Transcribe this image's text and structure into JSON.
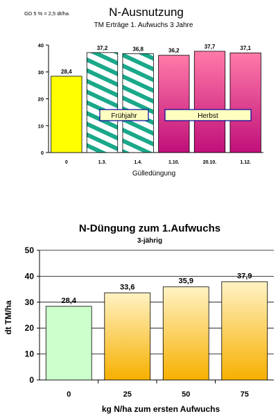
{
  "charts": [
    {
      "note": "GD 5 % = 2,5 dt/ha",
      "title": "N-Ausnutzung",
      "subtitle": "TM Erträge 1. Aufwuchs 3 Jahre",
      "xlabel": "Gülledüngung",
      "box_labels": [
        "Frühjahr",
        "Herbst"
      ],
      "colors": {
        "yellow": "#ffff00",
        "teal": "#1aa88a",
        "pink_top": "#ff7aa8",
        "pink_bottom": "#c0107a",
        "box_fill": "#ffffc0",
        "box_border": "#0000a0"
      }
    },
    {
      "title": "N-Düngung zum 1.Aufwuchs",
      "subtitle": "3-jährig",
      "ylabel": "dt TM/ha",
      "xlabel": "kg N/ha zum ersten Aufwuchs",
      "colors": {
        "green": "#ccffcc",
        "orange_top": "#fff2c4",
        "orange_bottom": "#f7b000"
      }
    }
  ],
  "chart_data": [
    {
      "type": "bar",
      "title": "N-Ausnutzung",
      "subtitle": "TM Erträge 1. Aufwuchs 3 Jahre",
      "xlabel": "Gülledüngung",
      "ylabel": "",
      "categories": [
        "0",
        "1.3.",
        "1.4.",
        "1.10.",
        "20.10.",
        "1.12."
      ],
      "values": [
        28.4,
        37.2,
        36.8,
        36.2,
        37.7,
        37.1
      ],
      "value_labels": [
        "28,4",
        "37,2",
        "36,8",
        "36,2",
        "37,7",
        "37,1"
      ],
      "ylim": [
        0,
        40
      ],
      "yticks": [
        "0",
        "10",
        "20",
        "30",
        "40"
      ],
      "grid": false,
      "annotations": [
        "GD 5 % = 2,5 dt/ha",
        "Frühjahr",
        "Herbst"
      ]
    },
    {
      "type": "bar",
      "title": "N-Düngung zum 1.Aufwuchs",
      "subtitle": "3-jährig",
      "xlabel": "kg N/ha zum ersten Aufwuchs",
      "ylabel": "dt TM/ha",
      "categories": [
        "0",
        "25",
        "50",
        "75"
      ],
      "values": [
        28.4,
        33.6,
        35.9,
        37.9
      ],
      "value_labels": [
        "28,4",
        "33,6",
        "35,9",
        "37,9"
      ],
      "ylim": [
        0,
        50
      ],
      "yticks": [
        "0",
        "10",
        "20",
        "30",
        "40",
        "50"
      ],
      "grid": true
    }
  ]
}
